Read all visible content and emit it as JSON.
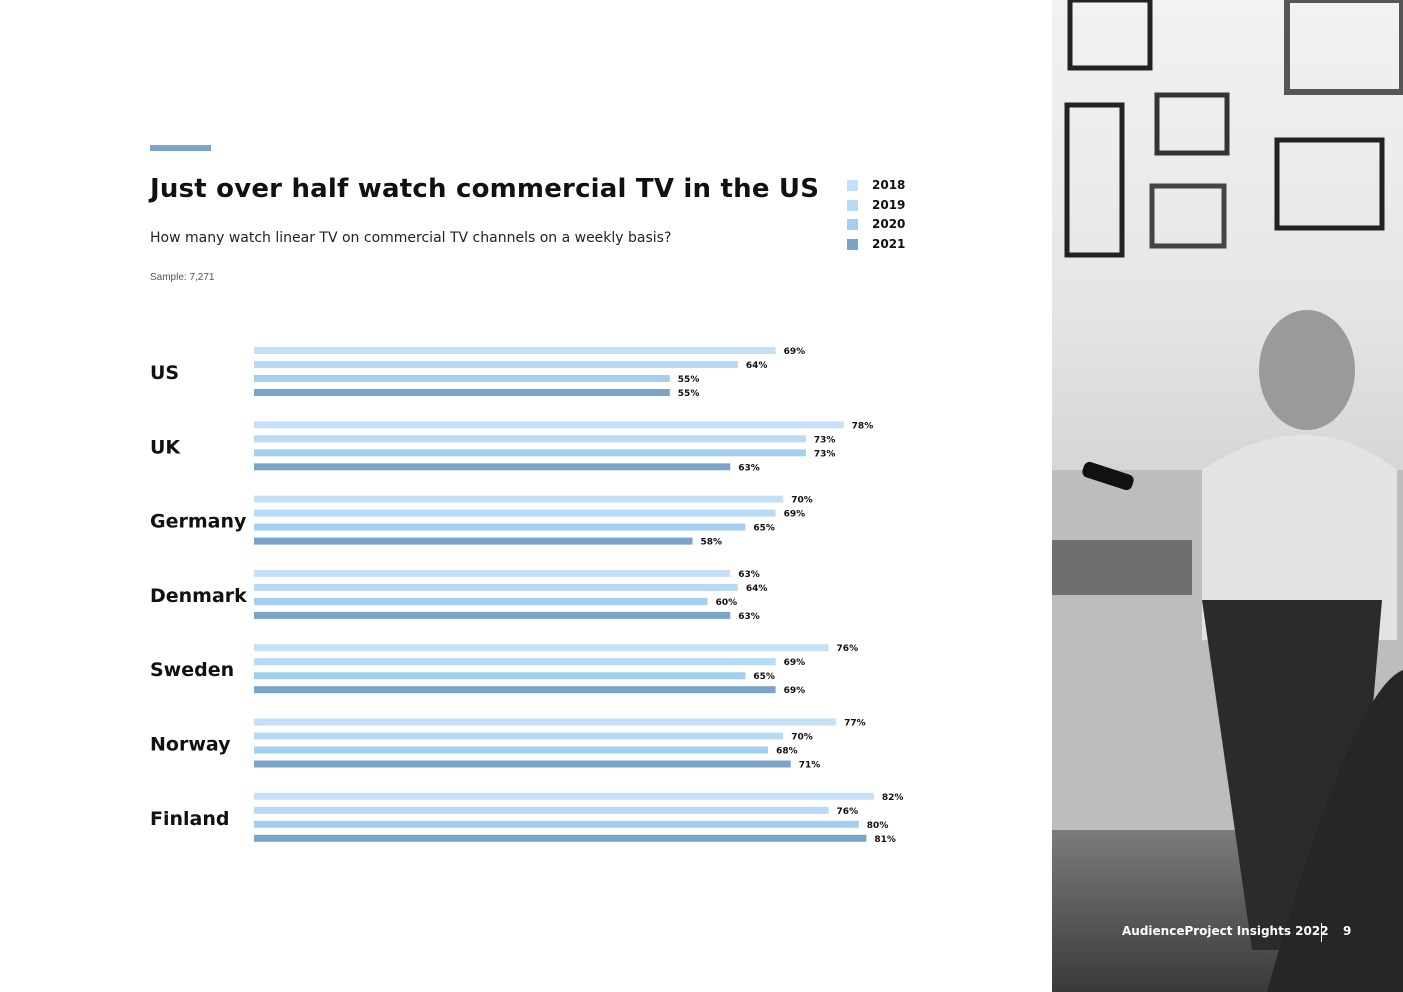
{
  "header": {
    "title": "Just over half watch commercial TV in the US",
    "subtitle": "How many watch linear TV on commercial TV channels on a weekly basis?",
    "sample": "Sample: 7,271"
  },
  "legend": [
    {
      "label": "2018",
      "color": "#c6e0f7"
    },
    {
      "label": "2019",
      "color": "#b8daf5"
    },
    {
      "label": "2020",
      "color": "#a3cff0"
    },
    {
      "label": "2021",
      "color": "#7aa5c9"
    }
  ],
  "chart_data": {
    "type": "bar",
    "orientation": "horizontal",
    "title": "Just over half watch commercial TV in the US",
    "categories": [
      "US",
      "UK",
      "Germany",
      "Denmark",
      "Sweden",
      "Norway",
      "Finland"
    ],
    "series": [
      {
        "name": "2018",
        "values": [
          69,
          78,
          70,
          63,
          76,
          77,
          82
        ]
      },
      {
        "name": "2019",
        "values": [
          64,
          73,
          69,
          64,
          69,
          70,
          76
        ]
      },
      {
        "name": "2020",
        "values": [
          55,
          73,
          65,
          60,
          65,
          68,
          80
        ]
      },
      {
        "name": "2021",
        "values": [
          55,
          63,
          58,
          63,
          69,
          71,
          81
        ]
      }
    ],
    "value_suffix": "%",
    "xlim": [
      0,
      100
    ],
    "grid": false,
    "legend_position": "top-right"
  },
  "footer": {
    "brand": "AudienceProject Insights 2022",
    "page": "9"
  },
  "photo": {
    "icon": "tv-viewer-photo"
  }
}
